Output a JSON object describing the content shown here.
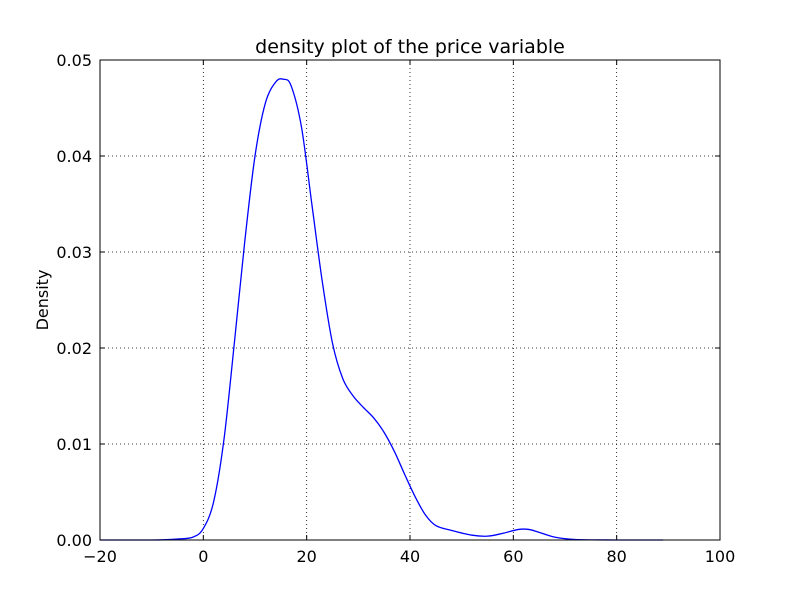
{
  "chart_data": {
    "type": "line",
    "title": "density plot of the price variable",
    "xlabel": "",
    "ylabel": "Density",
    "xlim": [
      -20,
      100
    ],
    "ylim": [
      0,
      0.05
    ],
    "x_ticks": [
      -20,
      0,
      20,
      40,
      60,
      80,
      100
    ],
    "x_tick_labels": [
      "−20",
      "0",
      "20",
      "40",
      "60",
      "80",
      "100"
    ],
    "y_ticks": [
      0,
      0.01,
      0.02,
      0.03,
      0.04,
      0.05
    ],
    "y_tick_labels": [
      "0.00",
      "0.01",
      "0.02",
      "0.03",
      "0.04",
      "0.05"
    ],
    "grid": true,
    "line_color": "#0000ff",
    "series": [
      {
        "x": [
          -20,
          -10,
          -5,
          -2,
          0,
          2,
          4,
          6,
          8,
          10,
          12,
          14,
          15.5,
          17,
          19,
          21,
          23,
          25,
          27,
          29,
          31,
          33,
          35,
          37,
          39,
          41,
          43,
          45,
          48,
          52,
          55,
          58,
          61,
          63,
          65,
          68,
          72,
          80,
          89
        ],
        "y": [
          0,
          0,
          0.0001,
          0.0003,
          0.0012,
          0.004,
          0.0105,
          0.0205,
          0.031,
          0.04,
          0.0455,
          0.0477,
          0.048,
          0.0473,
          0.043,
          0.035,
          0.027,
          0.0205,
          0.0168,
          0.015,
          0.0138,
          0.0127,
          0.0112,
          0.0092,
          0.0068,
          0.0045,
          0.0026,
          0.0015,
          0.001,
          0.0005,
          0.0004,
          0.0007,
          0.0011,
          0.0011,
          0.0008,
          0.0003,
          5e-05,
          0,
          0
        ]
      }
    ]
  }
}
